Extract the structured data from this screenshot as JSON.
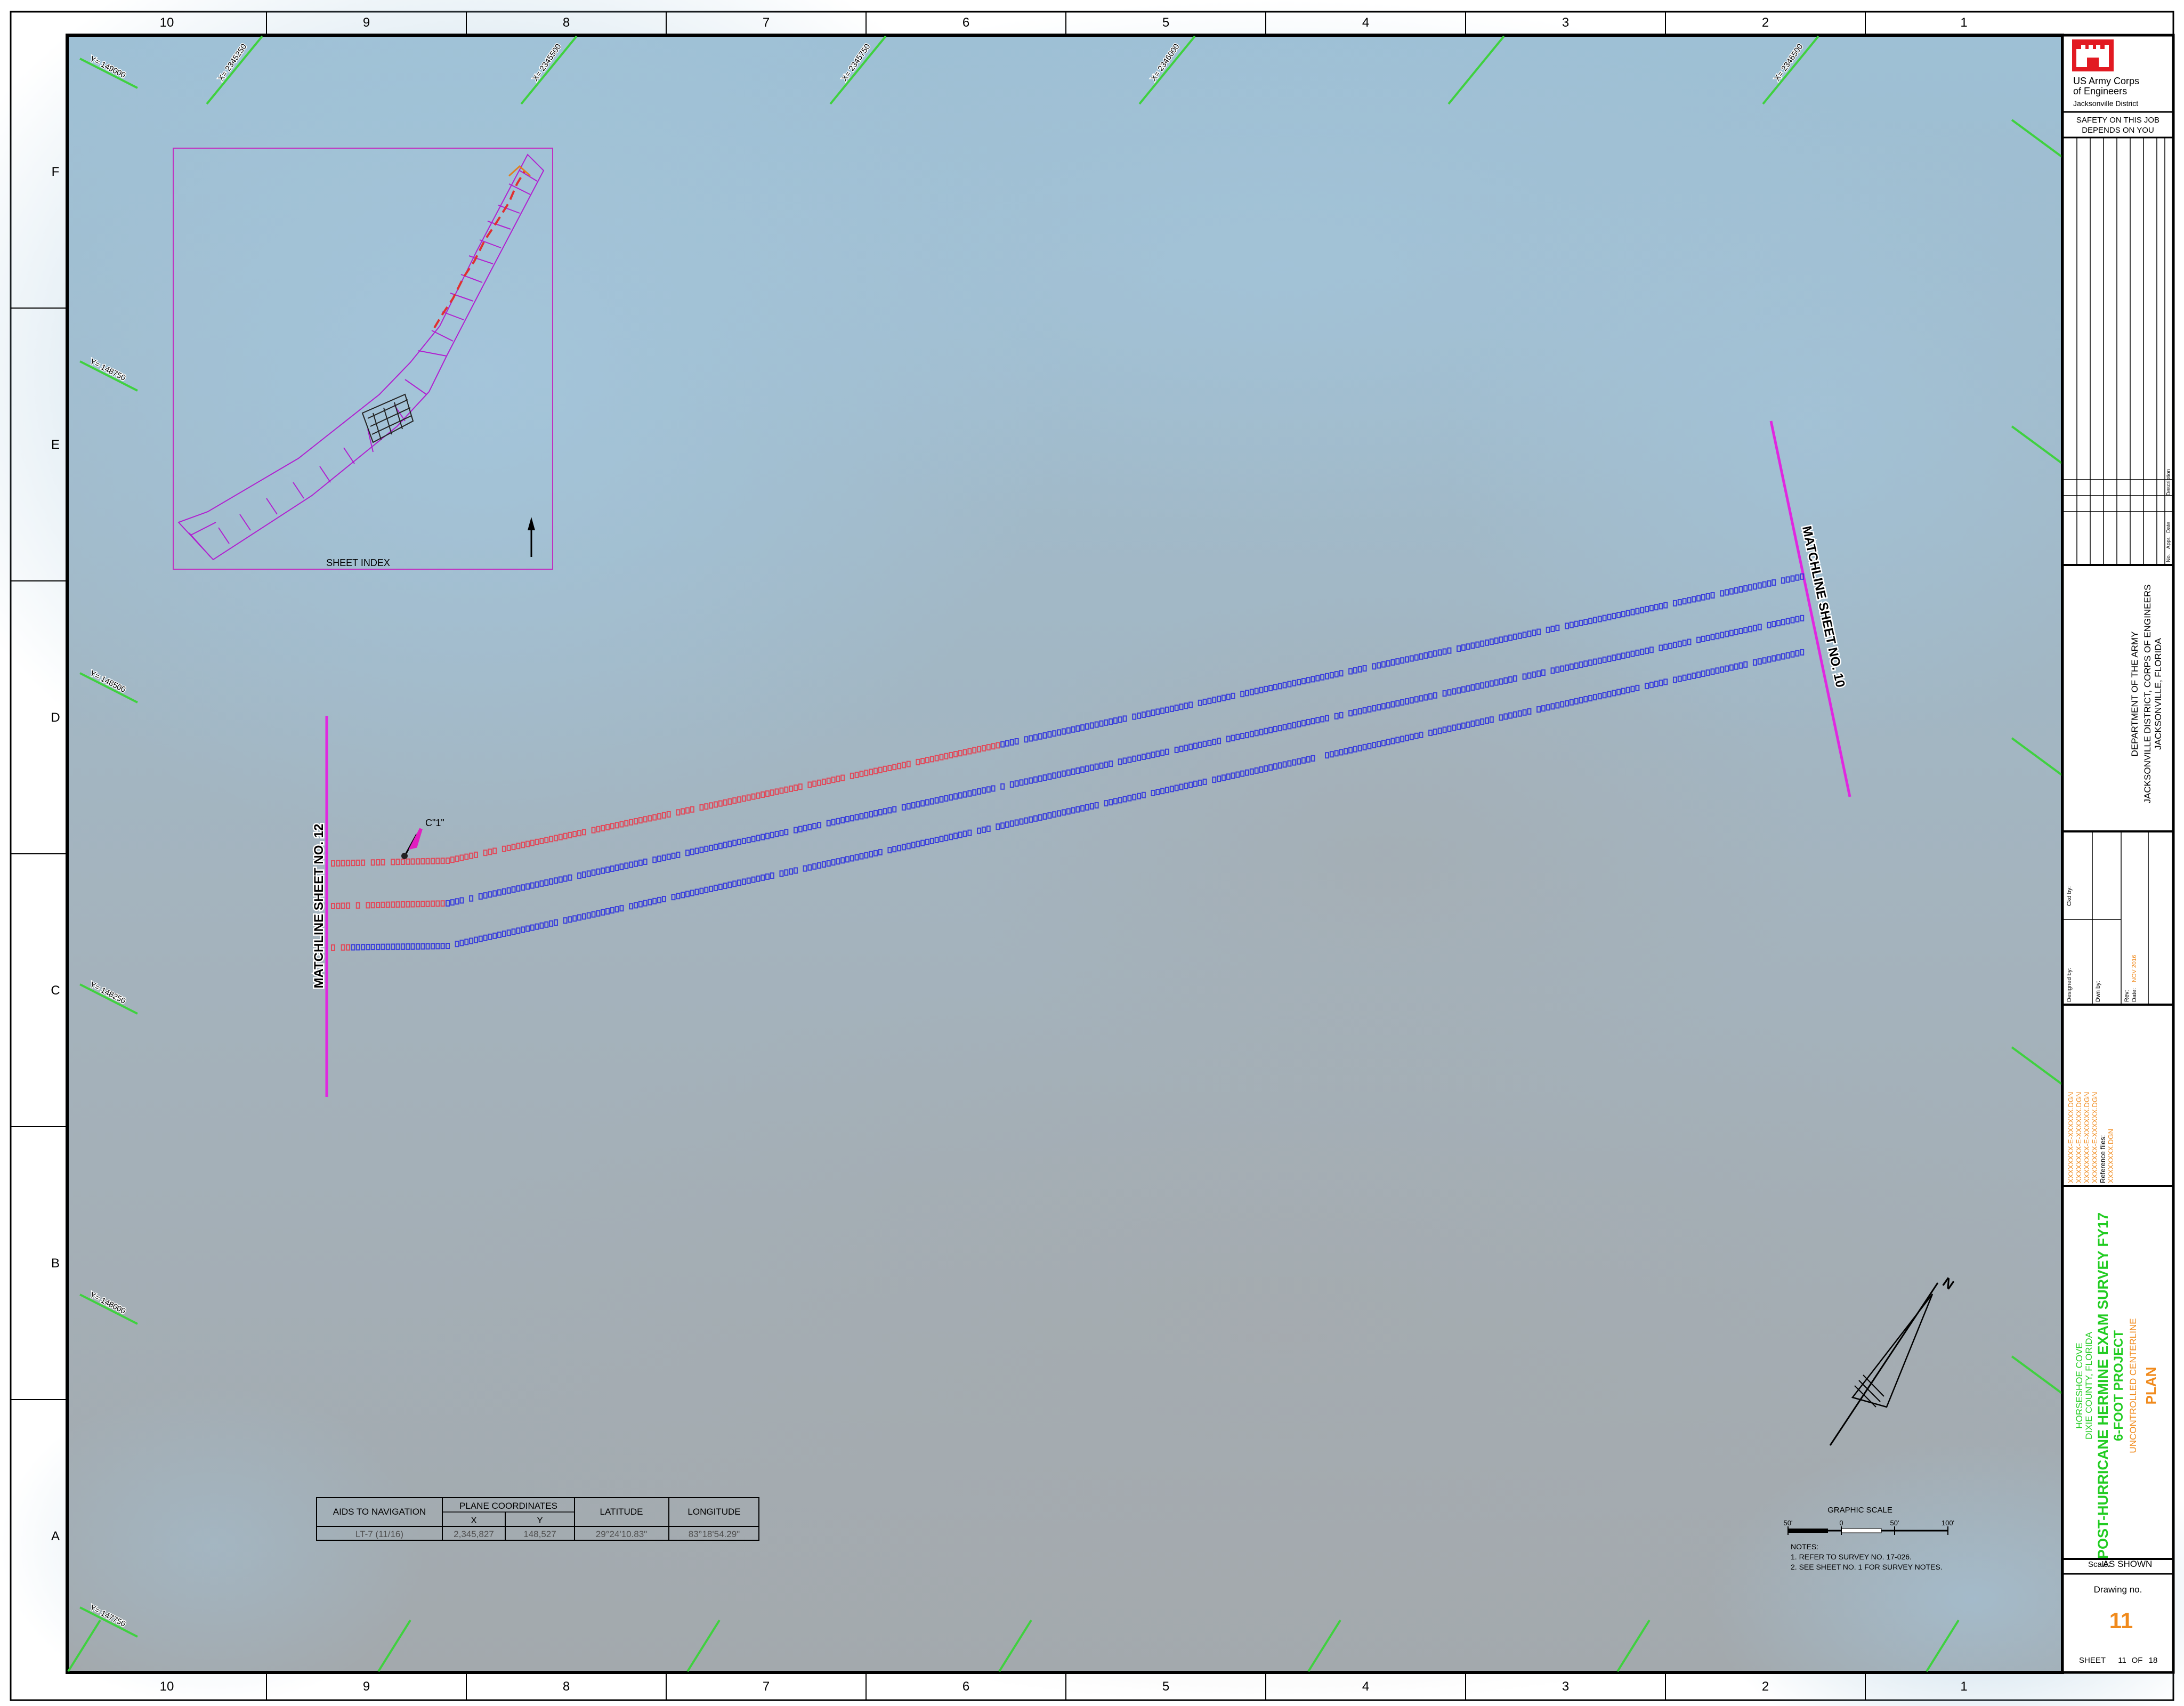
{
  "grid": {
    "columns": [
      "10",
      "9",
      "8",
      "7",
      "6",
      "5",
      "4",
      "3",
      "2",
      "1"
    ],
    "rows": [
      "F",
      "E",
      "D",
      "C",
      "B",
      "A"
    ]
  },
  "grid_ticks": {
    "x_labels": [
      "X= 2345250",
      "X= 2345500",
      "X= 2345750",
      "X= 2346000",
      "X= 2346500"
    ],
    "y_labels": [
      "Y= 149000",
      "Y= 148750",
      "Y= 148500",
      "Y= 148250",
      "Y= 148000",
      "Y= 147750"
    ]
  },
  "sheet_index": {
    "label": "SHEET INDEX"
  },
  "matchlines": {
    "left": "MATCHLINE SHEET NO. 12",
    "right": "MATCHLINE SHEET NO. 10"
  },
  "marker": {
    "label": "C\"1\""
  },
  "aids_table": {
    "headers": {
      "aids": "AIDS TO NAVIGATION",
      "plane": "PLANE COORDINATES",
      "x": "X",
      "y": "Y",
      "lat": "LATITUDE",
      "lon": "LONGITUDE"
    },
    "row": {
      "aid": "LT-7 (11/16)",
      "x": "2,345,827",
      "y": "148,527",
      "lat": "29°24'10.83\"",
      "lon": "83°18'54.29\""
    }
  },
  "scale": {
    "title": "GRAPHIC SCALE",
    "ticks": [
      "50'",
      "0",
      "50'",
      "100'"
    ]
  },
  "notes": {
    "title": "NOTES:",
    "items": [
      "1. REFER TO SURVEY NO. 17-026.",
      "2. SEE SHEET NO. 1 FOR SURVEY NOTES."
    ]
  },
  "compass": {
    "label": "N"
  },
  "title_block": {
    "org_line1": "US Army Corps",
    "org_line2": "of Engineers",
    "district": "Jacksonville District",
    "safety_line1": "SAFETY ON THIS JOB",
    "safety_line2": "DEPENDS ON YOU",
    "revision_headers": [
      "Description",
      "Date",
      "Appr.",
      "No."
    ],
    "dept_line1": "DEPARTMENT OF THE ARMY",
    "dept_line2": "JACKSONVILLE DISTRICT, CORPS OF ENGINEERS",
    "dept_line3": "JACKSONVILLE, FLORIDA",
    "designed_by": "Designed by:",
    "drawn_by": "Dwn by:",
    "checked_by": "Ckd by:",
    "rev_label": "Rev:",
    "date_label": "Date:",
    "date_value": "NOV 2016",
    "file_lines": [
      "XXXXXXXX-E-XXXXXX.DGN",
      "XXXXXXXX-E-XXXXXX.DGN",
      "XXXXXXXX-E-XXXXXX.DGN",
      "XXXXXXXX-E-XXXXXX.DGN",
      "Reference files:",
      "XXXXXXXX.DGN"
    ],
    "project_lines": [
      "HORSESHOE COVE",
      "DIXIE COUNTY, FLORIDA"
    ],
    "main_title": "POST-HURRICANE HERMINE EXAM SURVEY FY17",
    "sub_title": "6-FOOT PROJECT",
    "detail": "UNCONTROLLED CENTERLINE",
    "plan": "PLAN",
    "scale_label": "Scale:",
    "scale_value": "AS SHOWN",
    "drawing_label": "Drawing no.",
    "drawing_no": "11",
    "sheet_label": "SHEET",
    "sheet_no": "11",
    "sheet_of": "OF",
    "sheet_total": "18"
  },
  "colors": {
    "water_blue": "#9fbfd3",
    "water_gray": "#a3a8ab",
    "tick_green": "#3fd13f",
    "matchline_magenta": "#e028e0",
    "sounding_blue": "#3a3fdb",
    "sounding_red": "#e04a5a",
    "usace_red": "#e21a22",
    "title_green": "#22cc22",
    "title_orange": "#f08a1c"
  }
}
